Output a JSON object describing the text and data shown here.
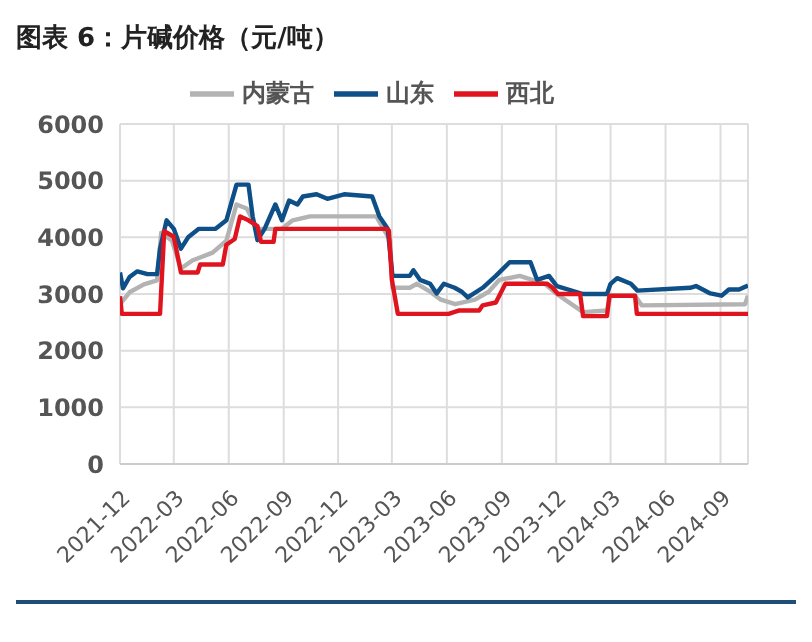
{
  "chart_data": {
    "type": "line",
    "title": "图表 6：片碱价格（元/吨）",
    "xlim": [
      "2021-12-01",
      "2024-10-17"
    ],
    "xticks": [
      "2021-12",
      "2022-03",
      "2022-06",
      "2022-09",
      "2022-12",
      "2023-03",
      "2023-06",
      "2023-09",
      "2023-12",
      "2024-03",
      "2024-06",
      "2024-09"
    ],
    "ylim": [
      0,
      6000
    ],
    "yticks": [
      0,
      1000,
      2000,
      3000,
      4000,
      5000,
      6000
    ],
    "grid": true,
    "legend": "top",
    "line_style": "solid",
    "marker": "none",
    "series": [
      {
        "name": "内蒙古",
        "color": "#b3b3b3",
        "x": [
          "2021-12-01",
          "2021-12-17",
          "2022-01-10",
          "2022-02-01",
          "2022-02-08",
          "2022-02-26",
          "2022-03-13",
          "2022-04-01",
          "2022-05-05",
          "2022-05-28",
          "2022-06-14",
          "2022-07-01",
          "2022-07-19",
          "2022-08-29",
          "2022-09-16",
          "2022-10-15",
          "2023-02-03",
          "2023-02-15",
          "2023-02-26",
          "2023-03-02",
          "2023-03-31",
          "2023-04-12",
          "2023-05-04",
          "2023-05-22",
          "2023-06-15",
          "2023-07-18",
          "2023-08-10",
          "2023-08-28",
          "2023-10-01",
          "2023-11-12",
          "2023-12-02",
          "2024-01-15",
          "2024-02-24",
          "2024-03-01",
          "2024-04-11",
          "2024-04-22",
          "2024-10-12",
          "2024-10-17"
        ],
        "values": [
          2820,
          3030,
          3170,
          3240,
          4080,
          3940,
          3450,
          3590,
          3730,
          3940,
          4580,
          4510,
          4150,
          4150,
          4300,
          4370,
          4370,
          4150,
          3950,
          3110,
          3110,
          3180,
          3040,
          2900,
          2820,
          2900,
          3040,
          3250,
          3320,
          3180,
          3000,
          2680,
          2710,
          2970,
          2970,
          2800,
          2820,
          2970
        ]
      },
      {
        "name": "山东",
        "color": "#0d4f86",
        "x": [
          "2021-12-01",
          "2021-12-06",
          "2021-12-17",
          "2021-12-30",
          "2022-01-16",
          "2022-02-01",
          "2022-02-06",
          "2022-02-17",
          "2022-03-01",
          "2022-03-13",
          "2022-03-25",
          "2022-04-12",
          "2022-05-10",
          "2022-05-28",
          "2022-06-14",
          "2022-07-04",
          "2022-07-11",
          "2022-07-19",
          "2022-07-31",
          "2022-08-18",
          "2022-08-29",
          "2022-09-10",
          "2022-09-24",
          "2022-10-03",
          "2022-10-26",
          "2022-11-13",
          "2022-12-11",
          "2023-01-27",
          "2023-02-08",
          "2023-02-22",
          "2023-03-02",
          "2023-03-31",
          "2023-04-06",
          "2023-04-17",
          "2023-05-04",
          "2023-05-15",
          "2023-05-27",
          "2023-06-14",
          "2023-06-26",
          "2023-07-06",
          "2023-07-31",
          "2023-08-22",
          "2023-09-14",
          "2023-10-19",
          "2023-10-30",
          "2023-11-19",
          "2023-12-02",
          "2024-01-15",
          "2024-02-24",
          "2024-03-01",
          "2024-03-12",
          "2024-04-04",
          "2024-04-15",
          "2024-07-12",
          "2024-07-22",
          "2024-08-15",
          "2024-09-03",
          "2024-09-15",
          "2024-10-02",
          "2024-10-17"
        ],
        "values": [
          3380,
          3100,
          3300,
          3400,
          3350,
          3350,
          3800,
          4300,
          4150,
          3800,
          4000,
          4150,
          4150,
          4300,
          4930,
          4930,
          4370,
          3950,
          4150,
          4580,
          4300,
          4650,
          4580,
          4720,
          4760,
          4680,
          4760,
          4720,
          4370,
          4150,
          3320,
          3320,
          3420,
          3250,
          3180,
          3010,
          3180,
          3110,
          3040,
          2940,
          3110,
          3320,
          3560,
          3560,
          3250,
          3320,
          3140,
          3000,
          3000,
          3180,
          3280,
          3180,
          3060,
          3110,
          3140,
          3010,
          2970,
          3080,
          3080,
          3150
        ]
      },
      {
        "name": "西北",
        "color": "#e0141e",
        "x": [
          "2021-12-01",
          "2021-12-04",
          "2022-02-06",
          "2022-02-13",
          "2022-03-01",
          "2022-03-13",
          "2022-04-10",
          "2022-04-14",
          "2022-05-22",
          "2022-05-28",
          "2022-06-11",
          "2022-06-20",
          "2022-07-04",
          "2022-07-19",
          "2022-07-25",
          "2022-08-15",
          "2022-08-18",
          "2023-02-20",
          "2023-02-24",
          "2023-03-01",
          "2023-03-11",
          "2023-06-04",
          "2023-06-22",
          "2023-07-25",
          "2023-07-31",
          "2023-08-22",
          "2023-09-07",
          "2023-11-16",
          "2023-11-25",
          "2023-12-04",
          "2024-01-10",
          "2024-01-15",
          "2024-02-24",
          "2024-02-28",
          "2024-04-11",
          "2024-04-14",
          "2024-10-17"
        ],
        "values": [
          2960,
          2650,
          2650,
          4110,
          4010,
          3380,
          3380,
          3520,
          3520,
          3870,
          3970,
          4370,
          4300,
          4200,
          3920,
          3920,
          4150,
          4150,
          4120,
          3250,
          2650,
          2650,
          2710,
          2710,
          2800,
          2850,
          3180,
          3180,
          3110,
          3000,
          3000,
          2610,
          2610,
          2970,
          2970,
          2650,
          2650
        ]
      }
    ]
  }
}
